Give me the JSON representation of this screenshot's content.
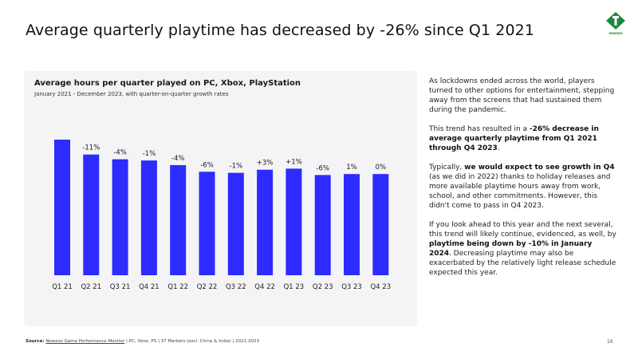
{
  "slide": {
    "title": "Average quarterly playtime has decreased by -26% since Q1 2021",
    "page_number": "16"
  },
  "logo": {
    "text": "newzoo",
    "color": "#1a8a3a"
  },
  "chart_data": {
    "type": "bar",
    "title": "Average hours per quarter played on PC, Xbox, PlayStation",
    "subtitle": "January 2021 - December 2023, with quarter-on-quarter growth rates",
    "categories": [
      "Q1 21",
      "Q2 21",
      "Q3 21",
      "Q4 21",
      "Q1 22",
      "Q2 22",
      "Q3 22",
      "Q4 22",
      "Q1 23",
      "Q2 23",
      "Q3 23",
      "Q4 23"
    ],
    "values": [
      100,
      89,
      85.5,
      84.6,
      81.2,
      76.3,
      75.5,
      77.8,
      78.6,
      73.9,
      74.6,
      74.6
    ],
    "growth_labels": [
      "",
      "-11%",
      "-4%",
      "-1%",
      "-4%",
      "-6%",
      "-1%",
      "+3%",
      "+1%",
      "-6%",
      "1%",
      "0%"
    ],
    "xlabel": "",
    "ylabel": "",
    "ylim": [
      0,
      100
    ],
    "bar_color": "#2e2bff",
    "grid": false,
    "axis_visible": false
  },
  "commentary": {
    "p1": "As lockdowns ended across the world, players turned to other options for entertainment, stepping away from the screens that had sustained them during the pandemic.",
    "p2_pre": "This trend has resulted in a ",
    "p2_bold": "-26% decrease in average quarterly playtime from Q1 2021 through Q4 2023",
    "p2_post": ".",
    "p3_pre": "Typically, ",
    "p3_bold": "we would expect to see growth in Q4",
    "p3_post": " (as we did in 2022) thanks to holiday releases and more available playtime hours away from work, school, and other commitments. However, this didn't come to pass in Q4 2023.",
    "p4_pre": "If you look ahead to this year and the next several, this trend will likely continue, evidenced, as well, by ",
    "p4_bold": "playtime being down by -10% in January 2024",
    "p4_post": ". Decreasing playtime may also be exacerbated by the relatively light release schedule expected this year."
  },
  "footer": {
    "source_label": "Source:",
    "source_link": "Newzoo Game Performance Monitor",
    "source_rest": " | PC, Xbox, PS | 37 Markets (excl. China & India) | 2021-2023"
  }
}
